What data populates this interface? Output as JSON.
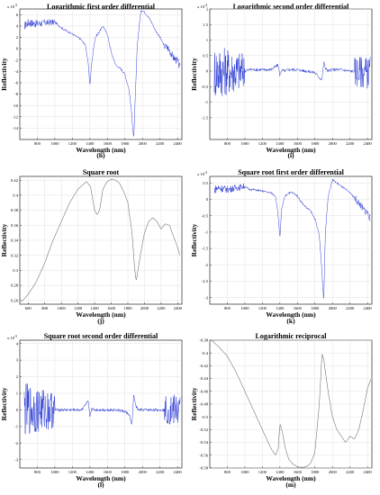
{
  "chart_data": [
    {
      "caption": "(h)",
      "title": "Logarithmic first order differential",
      "type": "line",
      "xlabel": "Wavelength (nm)",
      "ylabel": "Reflectivity",
      "y_multiplier": "x 10^-3",
      "xlim": [
        600,
        2450
      ],
      "ylim": [
        -16,
        7
      ],
      "xticks": [
        800,
        1000,
        1200,
        1400,
        1600,
        1800,
        2000,
        2200,
        2400
      ],
      "yticks": [
        6,
        4,
        2,
        0,
        -2,
        -4,
        -6,
        -8,
        -10,
        -12,
        -14
      ],
      "grid": true,
      "color": "#1a2bd0",
      "series": [
        {
          "x": [
            650,
            700,
            800,
            900,
            1000,
            1050,
            1100,
            1200,
            1300,
            1350,
            1380,
            1400,
            1420,
            1460,
            1500,
            1550,
            1600,
            1650,
            1700,
            1750,
            1800,
            1850,
            1880,
            1900,
            1920,
            1940,
            1980,
            2000,
            2050,
            2100,
            2150,
            2200,
            2250,
            2300,
            2350,
            2400,
            2430
          ],
          "y": [
            4.0,
            4.6,
            4.4,
            4.6,
            4.7,
            4.0,
            3.4,
            2.6,
            1.6,
            0.6,
            -2.5,
            -6.5,
            -2.5,
            2.0,
            2.8,
            4.0,
            2.5,
            -1.0,
            -3.0,
            -3.5,
            -4.5,
            -7.5,
            -12.0,
            -16.0,
            -8.0,
            0.5,
            6.5,
            6.8,
            6.0,
            4.8,
            3.2,
            2.0,
            0.5,
            0.0,
            -1.5,
            -2.2,
            -3.5
          ]
        }
      ]
    },
    {
      "caption": "(i)",
      "title": "Logarithmic second order differential",
      "type": "line",
      "xlabel": "Wavelength (nm)",
      "ylabel": "Reflectivity",
      "y_multiplier": "x 10^-4",
      "xlim": [
        600,
        2450
      ],
      "ylim": [
        -2.2,
        2.0
      ],
      "xticks": [
        800,
        1000,
        1200,
        1400,
        1600,
        1800,
        2000,
        2200,
        2400
      ],
      "yticks": [
        2,
        1.5,
        1,
        0.5,
        0,
        -0.5,
        -1,
        -1.5
      ],
      "grid": true,
      "color": "#1a2bd0",
      "series": [
        {
          "x": [
            650,
            700,
            800,
            900,
            1000,
            1050,
            1100,
            1200,
            1300,
            1380,
            1400,
            1420,
            1450,
            1500,
            1600,
            1700,
            1800,
            1850,
            1880,
            1900,
            1920,
            1950,
            2000,
            2100,
            2200,
            2300,
            2400,
            2430
          ],
          "y": [
            0,
            0,
            0,
            0,
            0,
            0.05,
            0.05,
            0.05,
            0.05,
            0.2,
            -0.15,
            0.05,
            0.0,
            0.05,
            0.05,
            0.0,
            -0.05,
            -0.2,
            -0.3,
            0.3,
            0.1,
            0.0,
            0.05,
            0.05,
            0.0,
            0.0,
            -0.05,
            0.0
          ]
        }
      ]
    },
    {
      "caption": "(j)",
      "title": "Square root",
      "type": "line",
      "xlabel": "Wavelength (nm)",
      "ylabel": "Reflectivity",
      "xlim": [
        500,
        2450
      ],
      "ylim": [
        0.255,
        0.425
      ],
      "xticks": [
        600,
        800,
        1000,
        1200,
        1400,
        1600,
        1800,
        2000,
        2200,
        2400
      ],
      "yticks": [
        0.42,
        0.4,
        0.38,
        0.36,
        0.34,
        0.32,
        0.3,
        0.28,
        0.26
      ],
      "grid": true,
      "color": "#777777",
      "series": [
        {
          "x": [
            520,
            600,
            700,
            800,
            900,
            1000,
            1100,
            1200,
            1300,
            1350,
            1400,
            1430,
            1460,
            1500,
            1550,
            1600,
            1650,
            1700,
            1750,
            1800,
            1850,
            1880,
            1900,
            1950,
            2000,
            2050,
            2100,
            2150,
            2200,
            2250,
            2300,
            2350,
            2400,
            2430
          ],
          "y": [
            0.258,
            0.268,
            0.285,
            0.31,
            0.34,
            0.365,
            0.39,
            0.408,
            0.418,
            0.412,
            0.38,
            0.374,
            0.38,
            0.408,
            0.418,
            0.421,
            0.42,
            0.416,
            0.405,
            0.39,
            0.35,
            0.305,
            0.285,
            0.32,
            0.35,
            0.365,
            0.37,
            0.365,
            0.355,
            0.362,
            0.36,
            0.345,
            0.33,
            0.318
          ]
        }
      ]
    },
    {
      "caption": "(k)",
      "title": "Square root first order differential",
      "type": "line",
      "xlabel": "Wavelength (nm)",
      "ylabel": "Reflectivity",
      "y_multiplier": "x 10^-3",
      "xlim": [
        600,
        2450
      ],
      "ylim": [
        -3.2,
        0.7
      ],
      "xticks": [
        800,
        1000,
        1200,
        1400,
        1600,
        1800,
        2000,
        2200,
        2400
      ],
      "yticks": [
        0.5,
        0,
        -0.5,
        -1,
        -1.5,
        -2,
        -2.5,
        -3
      ],
      "grid": true,
      "color": "#1a2bd0",
      "series": [
        {
          "x": [
            650,
            700,
            800,
            900,
            1000,
            1050,
            1100,
            1200,
            1300,
            1350,
            1380,
            1400,
            1420,
            1460,
            1500,
            1550,
            1600,
            1650,
            1700,
            1750,
            1800,
            1850,
            1880,
            1900,
            1920,
            1950,
            2000,
            2050,
            2100,
            2200,
            2300,
            2350,
            2400,
            2430
          ],
          "y": [
            0.3,
            0.35,
            0.3,
            0.35,
            0.4,
            0.3,
            0.3,
            0.25,
            0.2,
            0.1,
            -0.5,
            -1.2,
            -0.3,
            0.1,
            0.2,
            0.2,
            0.1,
            -0.1,
            -0.25,
            -0.35,
            -0.6,
            -1.1,
            -2.2,
            -3.1,
            -1.0,
            0.1,
            0.6,
            0.5,
            0.4,
            0.2,
            -0.1,
            -0.3,
            -0.4,
            -0.6
          ]
        }
      ]
    },
    {
      "caption": "(l)",
      "title": "Square root second order differential",
      "type": "line",
      "xlabel": "Wavelength (nm)",
      "ylabel": "Reflectivity",
      "y_multiplier": "x 10^-5",
      "xlim": [
        600,
        2450
      ],
      "ylim": [
        -3.5,
        4.2
      ],
      "xticks": [
        800,
        1000,
        1200,
        1400,
        1600,
        1800,
        2000,
        2200,
        2400
      ],
      "yticks": [
        4,
        3,
        2,
        1,
        0,
        -1,
        -2,
        -3
      ],
      "grid": true,
      "color": "#1a2bd0",
      "series": [
        {
          "x": [
            650,
            700,
            800,
            900,
            1000,
            1050,
            1100,
            1200,
            1300,
            1380,
            1400,
            1420,
            1450,
            1500,
            1600,
            1700,
            1800,
            1850,
            1880,
            1900,
            1920,
            1950,
            2000,
            2100,
            2200,
            2300,
            2400,
            2430
          ],
          "y": [
            0,
            0,
            0,
            0,
            0,
            0,
            0,
            0,
            0,
            0.5,
            -0.5,
            0.1,
            0,
            0,
            0,
            0,
            -0.1,
            -0.3,
            -1.0,
            1.0,
            0.3,
            0,
            0,
            0,
            0,
            0,
            0,
            0
          ]
        }
      ]
    },
    {
      "caption": "(m)",
      "title": "Logarithmic reciprocal",
      "type": "line",
      "xlabel": "Wavelength (nm)",
      "ylabel": "Reflectivity",
      "xlim": [
        600,
        2450
      ],
      "ylim": [
        -0.58,
        -0.38
      ],
      "xticks": [
        800,
        1000,
        1200,
        1400,
        1600,
        1800,
        2000,
        2200,
        2400
      ],
      "yticks": [
        -0.38,
        -0.4,
        -0.42,
        -0.44,
        -0.46,
        -0.48,
        -0.5,
        -0.52,
        -0.54,
        -0.56,
        -0.58
      ],
      "grid": true,
      "color": "#777777",
      "series": [
        {
          "x": [
            620,
            700,
            800,
            900,
            1000,
            1100,
            1200,
            1300,
            1350,
            1380,
            1400,
            1430,
            1460,
            1500,
            1550,
            1600,
            1650,
            1700,
            1750,
            1800,
            1850,
            1880,
            1900,
            1950,
            2000,
            2050,
            2100,
            2150,
            2200,
            2250,
            2300,
            2350,
            2400,
            2440
          ],
          "y": [
            -0.38,
            -0.39,
            -0.405,
            -0.43,
            -0.46,
            -0.49,
            -0.52,
            -0.55,
            -0.56,
            -0.55,
            -0.51,
            -0.525,
            -0.548,
            -0.566,
            -0.574,
            -0.578,
            -0.579,
            -0.578,
            -0.573,
            -0.555,
            -0.48,
            -0.4,
            -0.41,
            -0.46,
            -0.5,
            -0.52,
            -0.53,
            -0.54,
            -0.53,
            -0.535,
            -0.52,
            -0.49,
            -0.455,
            -0.44
          ]
        }
      ]
    }
  ]
}
